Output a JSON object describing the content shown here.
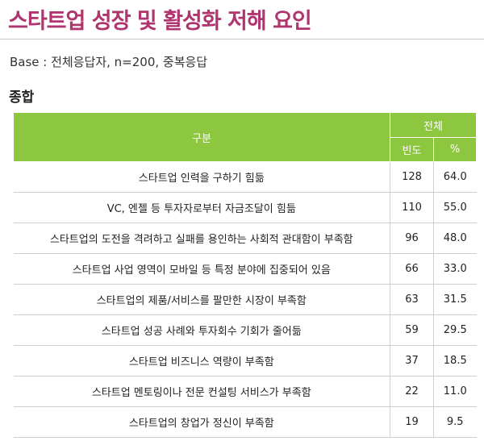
{
  "title": "스타트업 성장 및 활성화 저해 요인",
  "base": "Base : 전체응답자, n=200, 중복응답",
  "section": "종합",
  "table": {
    "col_category": "구분",
    "col_total": "전체",
    "col_freq": "빈도",
    "col_pct": "%",
    "rows": [
      {
        "label": "스타트업 인력을 구하기 힘듦",
        "freq": "128",
        "pct": "64.0"
      },
      {
        "label": "VC, 엔젤 등 투자자로부터 자금조달이 힘듦",
        "freq": "110",
        "pct": "55.0"
      },
      {
        "label": "스타트업의 도전을 격려하고 실패를 용인하는 사회적 관대함이 부족함",
        "freq": "96",
        "pct": "48.0"
      },
      {
        "label": "스타트업 사업 영역이 모바일 등 특정 분야에 집중되어 있음",
        "freq": "66",
        "pct": "33.0"
      },
      {
        "label": "스타트업의 제품/서비스를 팔만한 시장이 부족함",
        "freq": "63",
        "pct": "31.5"
      },
      {
        "label": "스타트업 성공 사례와 투자회수 기회가 줄어듦",
        "freq": "59",
        "pct": "29.5"
      },
      {
        "label": "스타트업 비즈니스 역량이 부족함",
        "freq": "37",
        "pct": "18.5"
      },
      {
        "label": "스타트업 멘토링이나 전문 컨설팅 서비스가 부족함",
        "freq": "22",
        "pct": "11.0"
      },
      {
        "label": "스타트업의 창업가 정신이 부족함",
        "freq": "19",
        "pct": "9.5"
      }
    ]
  }
}
